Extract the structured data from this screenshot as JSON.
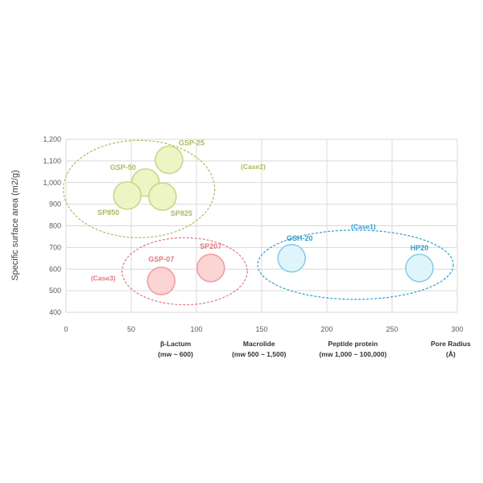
{
  "chart_data": {
    "type": "scatter",
    "ylabel": "Specific surface area (m2/g)",
    "xlim": [
      0,
      300
    ],
    "ylim": [
      400,
      1200
    ],
    "xticks": [
      0,
      50,
      100,
      150,
      200,
      250,
      300
    ],
    "yticks": [
      400,
      500,
      600,
      700,
      800,
      900,
      1000,
      1100,
      1200
    ],
    "ytick_labels": [
      "400",
      "500",
      "600",
      "700",
      "800",
      "900",
      "1,000",
      "1,100",
      "1,200"
    ],
    "grid": true,
    "points": [
      {
        "name": "GSP-25",
        "x": 79,
        "y": 1105,
        "group": "Case2"
      },
      {
        "name": "GSP-50",
        "x": 61,
        "y": 1000,
        "group": "Case2"
      },
      {
        "name": "SP850",
        "x": 47,
        "y": 940,
        "group": "Case2"
      },
      {
        "name": "SP825",
        "x": 74,
        "y": 935,
        "group": "Case2"
      },
      {
        "name": "GSP-07",
        "x": 73,
        "y": 545,
        "group": "Case3"
      },
      {
        "name": "SP207",
        "x": 111,
        "y": 605,
        "group": "Case3"
      },
      {
        "name": "GSH-20",
        "x": 173,
        "y": 650,
        "group": "Case1"
      },
      {
        "name": "HP20",
        "x": 271,
        "y": 605,
        "group": "Case1"
      }
    ],
    "groups": [
      {
        "name": "(Case2)",
        "key": "Case2",
        "cx": 56,
        "cy": 970,
        "rx": 58,
        "ry": 225,
        "color": "#a9bd5e",
        "fill": "#eef4c4",
        "stroke": "#c8d78a"
      },
      {
        "name": "(Case3)",
        "key": "Case3",
        "cx": 91,
        "cy": 590,
        "rx": 48,
        "ry": 155,
        "color": "#e07880",
        "fill": "#fcd4d4",
        "stroke": "#ee9ea3"
      },
      {
        "name": "(Case1)",
        "key": "Case1",
        "cx": 222,
        "cy": 620,
        "rx": 75,
        "ry": 160,
        "color": "#2b9fd4",
        "fill": "#e0f4fc",
        "stroke": "#86cde9"
      }
    ],
    "x_categories": [
      {
        "line1": "β-Lactum",
        "line2": "(mw ~ 600)",
        "x": 84
      },
      {
        "line1": "Macrolide",
        "line2": "(mw 500 ~ 1,500)",
        "x": 148
      },
      {
        "line1": "Peptide protein",
        "line2": "(mw 1,000 ~ 100,000)",
        "x": 220
      },
      {
        "line1": "Pore Radius",
        "line2": "(Å)",
        "x": 295
      }
    ]
  }
}
